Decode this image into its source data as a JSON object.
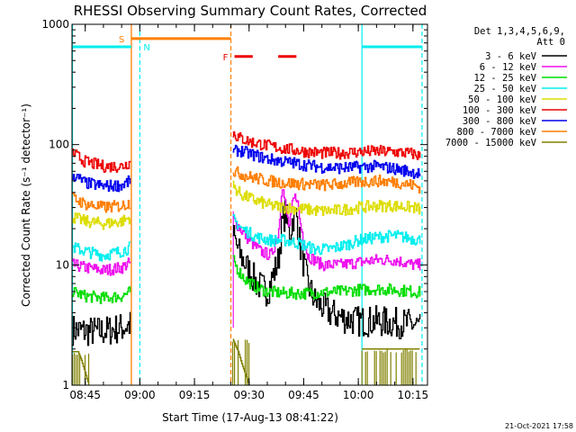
{
  "chart_data": {
    "type": "line",
    "title": "RHESSI Observing Summary Count Rates, Corrected",
    "xlabel": "Start Time (17-Aug-13 08:41:22)",
    "ylabel": "Corrected Count Rate (s⁻¹ detector⁻¹)",
    "yscale": "log",
    "ylim": [
      1,
      1000
    ],
    "y_ticks": [
      1,
      10,
      100,
      1000
    ],
    "y_tick_labels": [
      "1",
      "10",
      "100",
      "1000"
    ],
    "x_start": "08:41:22",
    "x_end": "10:19:00",
    "x_ticks": [
      "08:45",
      "09:00",
      "09:15",
      "09:30",
      "09:45",
      "10:00",
      "10:15"
    ],
    "legend_header": [
      "Det 1,3,4,5,6,9,",
      "Att 0"
    ],
    "legend_position": "right",
    "footer": "21-Oct-2021 17:58",
    "series": [
      {
        "name": "3 - 6 keV",
        "color": "#000000",
        "segments": [
          {
            "t": [
              "08:41:30",
              "08:45",
              "08:50",
              "08:55",
              "08:57:30"
            ],
            "y": [
              2.9,
              2.8,
              2.8,
              3.0,
              3.2
            ]
          },
          {
            "t": [
              "09:25:30",
              "09:27",
              "09:29",
              "09:32",
              "09:35",
              "09:38",
              "09:39",
              "09:40",
              "09:41",
              "09:42",
              "09:43",
              "09:44",
              "09:46",
              "09:48",
              "09:52",
              "09:56",
              "10:00",
              "10:05",
              "10:10",
              "10:15",
              "10:17"
            ],
            "y": [
              18,
              13,
              10,
              7.0,
              6.0,
              11,
              22,
              28,
              17,
              25,
              26,
              14,
              7.0,
              5.0,
              4.0,
              3.6,
              3.4,
              3.4,
              3.3,
              3.2,
              3.1
            ]
          }
        ]
      },
      {
        "name": "6 - 12 keV",
        "color": "#ee11ee",
        "segments": [
          {
            "t": [
              "08:41:30",
              "08:45",
              "08:50",
              "08:55",
              "08:57:30"
            ],
            "y": [
              10,
              9.5,
              9.0,
              9.5,
              10.5
            ]
          },
          {
            "t": [
              "09:25:30",
              "09:27",
              "09:30",
              "09:33",
              "09:36",
              "09:38",
              "09:39",
              "09:40",
              "09:41",
              "09:42",
              "09:43",
              "09:44",
              "09:46",
              "09:50",
              "09:55",
              "10:00",
              "10:05",
              "10:10",
              "10:15",
              "10:17"
            ],
            "y": [
              24,
              21,
              16,
              13,
              12,
              18,
              48,
              30,
              20,
              34,
              38,
              22,
              12,
              10,
              10,
              10.5,
              11,
              11,
              10,
              10
            ]
          }
        ]
      },
      {
        "name": "12 - 25 keV",
        "color": "#00dd00",
        "segments": [
          {
            "t": [
              "08:41:30",
              "08:45",
              "08:50",
              "08:55",
              "08:57:30"
            ],
            "y": [
              6.0,
              5.5,
              5.3,
              5.5,
              6.0
            ]
          },
          {
            "t": [
              "09:25:30",
              "09:27",
              "09:29",
              "09:32",
              "09:35",
              "09:40",
              "09:45",
              "09:50",
              "09:55",
              "10:00",
              "10:05",
              "10:10",
              "10:15",
              "10:17"
            ],
            "y": [
              11,
              9.0,
              7.5,
              6.5,
              6.0,
              5.8,
              5.8,
              5.9,
              6.0,
              6.2,
              6.3,
              6.2,
              6.0,
              5.9
            ]
          }
        ]
      },
      {
        "name": "25 - 50 keV",
        "color": "#00eeee",
        "segments": [
          {
            "t": [
              "08:41:30",
              "08:45",
              "08:50",
              "08:55",
              "08:57:30"
            ],
            "y": [
              14,
              13,
              12,
              13,
              14
            ]
          },
          {
            "t": [
              "09:25:30",
              "09:28",
              "09:32",
              "09:36",
              "09:40",
              "09:44",
              "09:48",
              "09:52",
              "09:56",
              "10:00",
              "10:05",
              "10:10",
              "10:15",
              "10:17"
            ],
            "y": [
              24,
              20,
              17,
              16,
              16,
              15,
              13.5,
              13.5,
              14.5,
              16,
              17,
              17.5,
              16.5,
              16
            ]
          }
        ]
      },
      {
        "name": "50 - 100 keV",
        "color": "#dddd00",
        "segments": [
          {
            "t": [
              "08:41:30",
              "08:45",
              "08:50",
              "08:55",
              "08:57:30"
            ],
            "y": [
              25,
              23,
              22,
              23,
              25
            ]
          },
          {
            "t": [
              "09:25:30",
              "09:28",
              "09:32",
              "09:36",
              "09:40",
              "09:45",
              "09:50",
              "09:55",
              "10:00",
              "10:05",
              "10:10",
              "10:15",
              "10:17"
            ],
            "y": [
              45,
              38,
              34,
              31,
              30,
              29,
              28,
              28.5,
              30,
              31,
              31,
              30,
              29
            ]
          }
        ]
      },
      {
        "name": "100 - 300 keV",
        "color": "#ee0000",
        "segments": [
          {
            "t": [
              "08:41:30",
              "08:45",
              "08:50",
              "08:55",
              "08:57:30"
            ],
            "y": [
              85,
              72,
              66,
              66,
              72
            ]
          },
          {
            "t": [
              "09:25:30",
              "09:27",
              "09:30",
              "09:35",
              "09:40",
              "09:45",
              "09:50",
              "09:55",
              "10:00",
              "10:05",
              "10:10",
              "10:15",
              "10:17"
            ],
            "y": [
              125,
              115,
              106,
              98,
              92,
              88,
              85,
              85,
              87,
              88,
              87,
              84,
              80
            ]
          }
        ]
      },
      {
        "name": "300 - 800 keV",
        "color": "#0000ee",
        "segments": [
          {
            "t": [
              "08:41:30",
              "08:45",
              "08:50",
              "08:55",
              "08:57:30"
            ],
            "y": [
              56,
              48,
              45,
              46,
              50
            ]
          },
          {
            "t": [
              "09:25:30",
              "09:27",
              "09:30",
              "09:35",
              "09:40",
              "09:45",
              "09:50",
              "09:55",
              "10:00",
              "10:05",
              "10:10",
              "10:15",
              "10:17"
            ],
            "y": [
              86,
              90,
              84,
              76,
              72,
              68,
              65,
              64,
              65,
              66,
              63,
              59,
              57
            ]
          }
        ]
      },
      {
        "name": "800 - 7000 keV",
        "color": "#ff7f00",
        "segments": [
          {
            "t": [
              "08:41:30",
              "08:45",
              "08:50",
              "08:55",
              "08:57:30"
            ],
            "y": [
              36,
              32,
              30,
              31,
              33
            ]
          },
          {
            "t": [
              "09:25:30",
              "09:27",
              "09:30",
              "09:35",
              "09:40",
              "09:45",
              "09:50",
              "09:55",
              "10:00",
              "10:05",
              "10:10",
              "10:15",
              "10:17"
            ],
            "y": [
              60,
              58,
              54,
              50,
              48,
              47,
              46,
              47,
              49,
              50,
              49,
              46,
              44
            ]
          }
        ]
      },
      {
        "name": "7000 - 15000 keV",
        "color": "#808000",
        "segments": [
          {
            "t": [
              "08:41:30",
              "08:43",
              "08:44",
              "08:46"
            ],
            "y": [
              1.9,
              1.9,
              1.6,
              1.0
            ]
          },
          {
            "t": [
              "09:25:30",
              "09:27",
              "09:28",
              "09:30"
            ],
            "y": [
              2.4,
              1.9,
              1.5,
              1.0
            ]
          },
          {
            "t": [
              "10:01",
              "10:03",
              "10:06",
              "10:09",
              "10:12",
              "10:15",
              "10:17"
            ],
            "y": [
              2.0,
              2.0,
              2.0,
              2.0,
              2.0,
              2.0,
              2.0
            ]
          }
        ]
      }
    ],
    "annotations": {
      "saa": {
        "label": "S",
        "color": "#ff7f00",
        "start": "08:57:40",
        "end": "09:25:00",
        "level": 760
      },
      "night": {
        "label": "N",
        "color": "#00eeee",
        "intervals": [
          [
            "08:41:22",
            "08:57:40"
          ],
          [
            "10:01:00",
            "10:17:30"
          ]
        ],
        "level": 650
      },
      "flare": {
        "label": "F",
        "color": "#ee0000",
        "segments": [
          [
            "09:26:00",
            "09:31:00"
          ],
          [
            "09:38:00",
            "09:43:00"
          ]
        ],
        "level": 540
      },
      "orange_dashed_lines": [
        "09:25:00"
      ],
      "cyan_dashed_lines": [
        "09:00:00",
        "10:17:30"
      ],
      "cyan_solid_lines": [
        "08:41:30",
        "10:01:00"
      ],
      "orange_solid_lines": [
        "08:57:40"
      ],
      "magenta_solid_lines": [
        "09:25:40"
      ]
    }
  }
}
